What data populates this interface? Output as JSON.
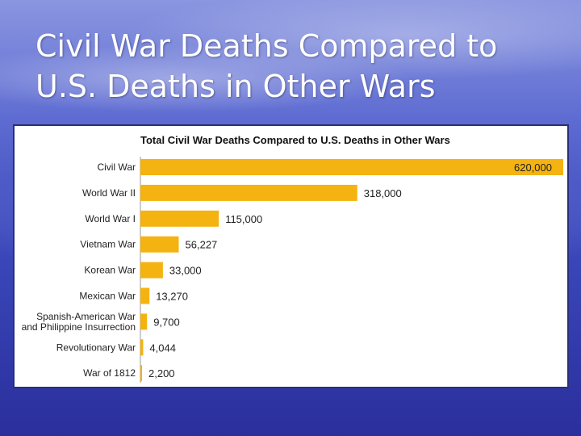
{
  "slide": {
    "title": "Civil War Deaths Compared to U.S. Deaths in Other Wars"
  },
  "colors": {
    "bar": "#f4b311",
    "background": "#3a46b8"
  },
  "chart_data": {
    "type": "bar",
    "orientation": "horizontal",
    "title": "Total Civil War Deaths Compared to U.S. Deaths in Other Wars",
    "xlabel": "",
    "ylabel": "",
    "categories": [
      [
        "Civil War"
      ],
      [
        "World War II"
      ],
      [
        "World War I"
      ],
      [
        "Vietnam War"
      ],
      [
        "Korean War"
      ],
      [
        "Mexican War"
      ],
      [
        "Spanish-American War",
        "and Philippine Insurrection"
      ],
      [
        "Revolutionary War"
      ],
      [
        "War of 1812"
      ]
    ],
    "values": [
      620000,
      318000,
      115000,
      56227,
      33000,
      13270,
      9700,
      4044,
      2200
    ],
    "value_labels": [
      "620,000",
      "318,000",
      "115,000",
      "56,227",
      "33,000",
      "13,270",
      "9,700",
      "4,044",
      "2,200"
    ],
    "xlim": [
      0,
      620000
    ],
    "grid": false,
    "legend": "none"
  }
}
